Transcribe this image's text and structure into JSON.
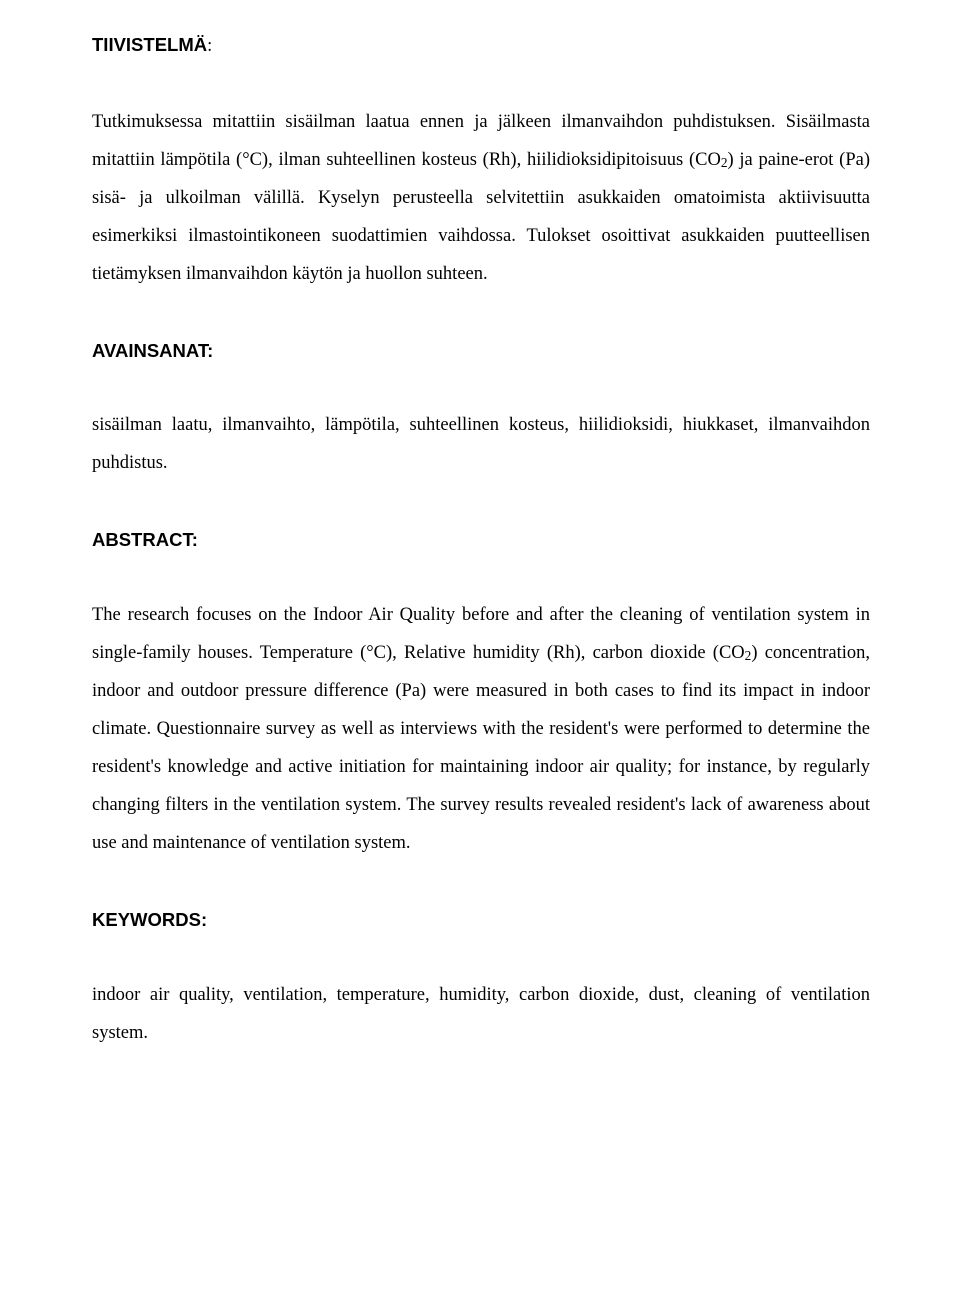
{
  "headings": {
    "tiivistelma": "TIIVISTELMÄ",
    "avainsanat": "AVAINSANAT:",
    "abstract": "ABSTRACT:",
    "keywords": "KEYWORDS:"
  },
  "fi_summary_a": "Tutkimuksessa mitattiin sisäilman laatua ennen ja jälkeen ilmanvaihdon puhdistuksen. Sisäilmasta mitattiin lämpötila (°C), ilman suhteellinen kosteus (Rh), hiilidioksidipitoisuus (CO",
  "fi_summary_b": ") ja paine-erot (Pa) sisä- ja ulkoilman välillä. Kyselyn perusteella selvitettiin asukkaiden omatoimista aktiivisuutta esimerkiksi ilmastointikoneen suodattimien vaihdossa. Tulokset osoittivat asukkaiden puutteellisen tietämyksen ilmanvaihdon käytön ja huollon suhteen.",
  "fi_keywords": "sisäilman laatu, ilmanvaihto, lämpötila, suhteellinen kosteus, hiilidioksidi, hiukkaset, ilmanvaihdon puhdistus.",
  "en_abstract_a": "The research focuses on the Indoor Air Quality before and after the cleaning of ventilation system in single-family houses. Temperature (°C), Relative humidity (Rh), carbon dioxide (CO",
  "en_abstract_b": ") concentration, indoor and outdoor pressure difference (Pa) were measured in both cases to find its impact in indoor climate. Questionnaire survey as well as interviews with the resident's were performed to determine the resident's knowledge and active initiation for maintaining indoor air quality; for instance, by regularly changing filters in the ventilation system. The survey results revealed resident's lack of awareness about use and maintenance of ventilation system.",
  "en_keywords": "indoor air quality, ventilation,  temperature, humidity, carbon dioxide, dust, cleaning of ventilation system.",
  "sub_two": "2",
  "colors": {
    "text": "#000000",
    "background": "#ffffff"
  },
  "typography": {
    "body_font": "Palatino Linotype",
    "heading_font": "Arial",
    "body_size_pt": 14,
    "heading_weight": 700,
    "line_height": 2.05
  }
}
